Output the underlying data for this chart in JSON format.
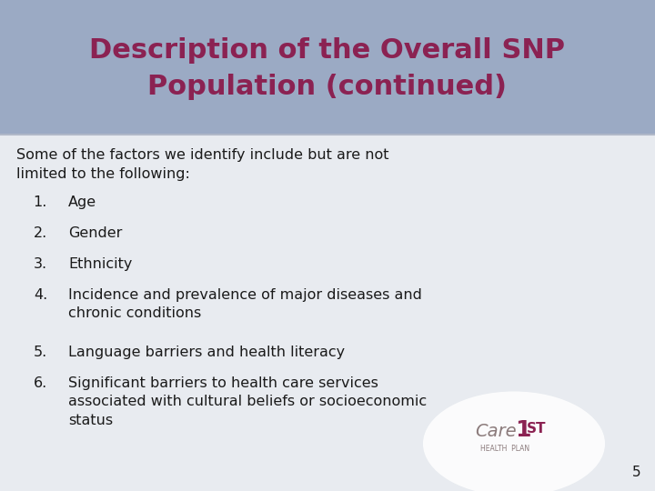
{
  "title_line1": "Description of the Overall SNP",
  "title_line2": "Population (continued)",
  "title_color": "#8B2252",
  "title_bg_color": "#9BAAC4",
  "body_bg_color": "#E8EBF0",
  "slide_bg_color": "#F0F2F5",
  "text_color": "#1a1a1a",
  "intro_text": "Some of the factors we identify include but are not\nlimited to the following:",
  "items": [
    {
      "num": "1.",
      "text": "Age"
    },
    {
      "num": "2.",
      "text": "Gender"
    },
    {
      "num": "3.",
      "text": "Ethnicity"
    },
    {
      "num": "4.",
      "text": "Incidence and prevalence of major diseases and\nchronic conditions"
    },
    {
      "num": "5.",
      "text": "Language barriers and health literacy"
    },
    {
      "num": "6.",
      "text": "Significant barriers to health care services\nassociated with cultural beliefs or socioeconomic\nstatus"
    }
  ],
  "page_number": "5",
  "logo_text_care": "Care",
  "logo_text_1": "1",
  "logo_text_st": "ST",
  "logo_subtext": "HEALTH  PLAN",
  "logo_color_care": "#8B7B7B",
  "logo_color_1st": "#8B2252",
  "title_font_size": 22,
  "body_font_size": 11.5,
  "item_font_size": 11.5
}
